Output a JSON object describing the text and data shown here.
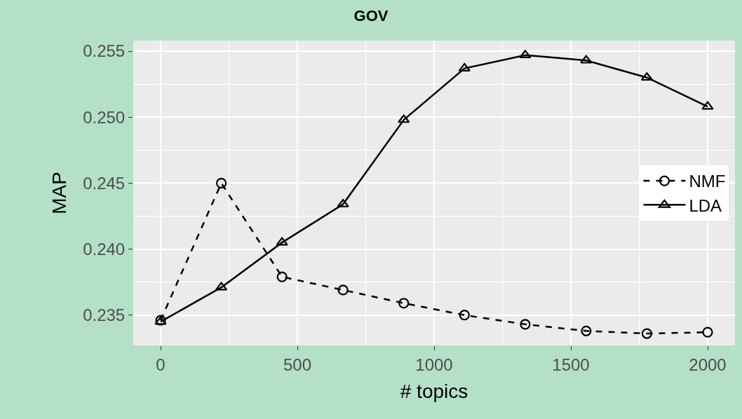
{
  "chart_data": {
    "type": "line",
    "title": "GOV",
    "xlabel": "# topics",
    "ylabel": "MAP",
    "x": [
      0,
      222,
      444,
      667,
      889,
      1111,
      1333,
      1556,
      1778,
      2000
    ],
    "series": [
      {
        "name": "NMF",
        "color": "#000000",
        "marker": "circle",
        "line_style": "dashed",
        "values": [
          0.2346,
          0.245,
          0.2379,
          0.2369,
          0.2359,
          0.235,
          0.2343,
          0.2338,
          0.2336,
          0.2337
        ]
      },
      {
        "name": "LDA",
        "color": "#000000",
        "marker": "triangle",
        "line_style": "solid",
        "values": [
          0.2345,
          0.2371,
          0.2405,
          0.2434,
          0.2498,
          0.2537,
          0.2547,
          0.2543,
          0.253,
          0.2508
        ]
      }
    ],
    "xlim": [
      -100,
      2100
    ],
    "xticks": [
      0,
      500,
      1000,
      1500,
      2000
    ],
    "ylim": [
      0.2327,
      0.2558
    ],
    "yticks": [
      {
        "value": 0.235,
        "label": "0.235"
      },
      {
        "value": 0.24,
        "label": "0.240"
      },
      {
        "value": 0.245,
        "label": "0.245"
      },
      {
        "value": 0.25,
        "label": "0.250"
      },
      {
        "value": 0.255,
        "label": "0.255"
      }
    ],
    "grid": true,
    "legend": "right"
  }
}
